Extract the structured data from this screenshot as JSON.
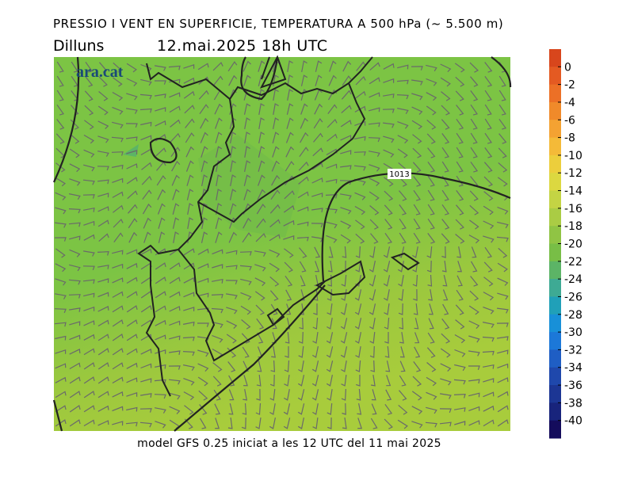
{
  "header": {
    "title": "PRESSIO I VENT EN SUPERFICIE, TEMPERATURA A 500 hPa (~ 5.500 m)",
    "day": "Dilluns",
    "datetime": "12.mai.2025 18h UTC"
  },
  "logo": "ara.cat",
  "isobar_label": "1013",
  "footer": "model GFS 0.25 iniciat a les 12 UTC del 11 mai 2025",
  "colorbar": {
    "ticks": [
      0,
      -2,
      -4,
      -6,
      -8,
      -10,
      -12,
      -14,
      -16,
      -18,
      -20,
      -22,
      -24,
      -26,
      -28,
      -30,
      -32,
      -34,
      -36,
      -38,
      -40
    ],
    "colors": [
      "#d8461c",
      "#e45a22",
      "#ec7026",
      "#f08a2a",
      "#f4a232",
      "#f4ba38",
      "#ecce3c",
      "#dcd840",
      "#c4d444",
      "#aacc44",
      "#90c444",
      "#78be46",
      "#5cb466",
      "#3eaa94",
      "#20a0b8",
      "#1890d8",
      "#1c78d8",
      "#1f5ec4",
      "#1f48ac",
      "#1c3694",
      "#18247c",
      "#140c5c"
    ]
  }
}
